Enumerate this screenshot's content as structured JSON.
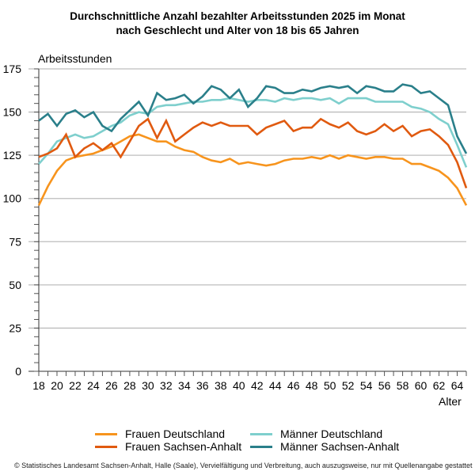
{
  "chart_data": {
    "type": "line",
    "title_line1": "Durchschnittliche Anzahl bezahlter Arbeitsstunden 2025 im Monat",
    "title_line2": "nach Geschlecht und Alter von 18 bis 65 Jahren",
    "ylabel": "Arbeitsstunden",
    "xlabel": "Alter",
    "ylim": [
      0,
      175
    ],
    "yticks": [
      0,
      25,
      50,
      75,
      100,
      125,
      150,
      175
    ],
    "y_minor_step": 5,
    "xlim": [
      18,
      65
    ],
    "xticks": [
      18,
      20,
      22,
      24,
      26,
      28,
      30,
      32,
      34,
      36,
      38,
      40,
      42,
      44,
      46,
      48,
      50,
      52,
      54,
      56,
      58,
      60,
      62,
      64
    ],
    "grid": "horizontal",
    "legend_position": "bottom",
    "x": [
      18,
      19,
      20,
      21,
      22,
      23,
      24,
      25,
      26,
      27,
      28,
      29,
      30,
      31,
      32,
      33,
      34,
      35,
      36,
      37,
      38,
      39,
      40,
      41,
      42,
      43,
      44,
      45,
      46,
      47,
      48,
      49,
      50,
      51,
      52,
      53,
      54,
      55,
      56,
      57,
      58,
      59,
      60,
      61,
      62,
      63,
      64,
      65
    ],
    "series": [
      {
        "name": "Frauen Deutschland",
        "color": "#F7941D",
        "values": [
          96,
          107,
          116,
          122,
          124,
          125,
          126,
          128,
          130,
          133,
          136,
          137,
          135,
          133,
          133,
          130,
          128,
          127,
          124,
          122,
          121,
          123,
          120,
          121,
          120,
          119,
          120,
          122,
          123,
          123,
          124,
          123,
          125,
          123,
          125,
          124,
          123,
          124,
          124,
          123,
          123,
          120,
          120,
          118,
          116,
          112,
          106,
          96
        ]
      },
      {
        "name": "Männer Deutschland",
        "color": "#7ECFCD",
        "values": [
          120,
          126,
          133,
          135,
          137,
          135,
          136,
          139,
          142,
          144,
          148,
          150,
          149,
          153,
          154,
          154,
          155,
          156,
          156,
          157,
          157,
          158,
          157,
          156,
          157,
          157,
          156,
          158,
          157,
          158,
          158,
          157,
          158,
          155,
          158,
          158,
          158,
          156,
          156,
          156,
          156,
          153,
          152,
          150,
          146,
          143,
          131,
          118
        ]
      },
      {
        "name": "Frauen Sachsen-Anhalt",
        "color": "#E05A10",
        "values": [
          124,
          126,
          129,
          137,
          124,
          129,
          132,
          128,
          132,
          124,
          133,
          142,
          146,
          135,
          145,
          133,
          137,
          141,
          144,
          142,
          144,
          142,
          142,
          142,
          137,
          141,
          143,
          145,
          139,
          141,
          141,
          146,
          143,
          141,
          144,
          139,
          137,
          139,
          143,
          139,
          142,
          136,
          139,
          140,
          136,
          131,
          121,
          106
        ]
      },
      {
        "name": "Männer Sachsen-Anhalt",
        "color": "#2A7F8A",
        "values": [
          145,
          149,
          142,
          149,
          151,
          147,
          150,
          142,
          139,
          146,
          151,
          156,
          148,
          161,
          157,
          158,
          160,
          155,
          159,
          165,
          163,
          158,
          163,
          153,
          158,
          165,
          164,
          161,
          161,
          163,
          162,
          164,
          165,
          164,
          165,
          161,
          165,
          164,
          162,
          162,
          166,
          165,
          161,
          162,
          158,
          154,
          136,
          126
        ]
      }
    ]
  },
  "footer": "© Statistisches Landesamt Sachsen-Anhalt, Halle (Saale), Vervielfältigung und Verbreitung, auch auszugsweise, nur mit Quellenangabe gestattet"
}
